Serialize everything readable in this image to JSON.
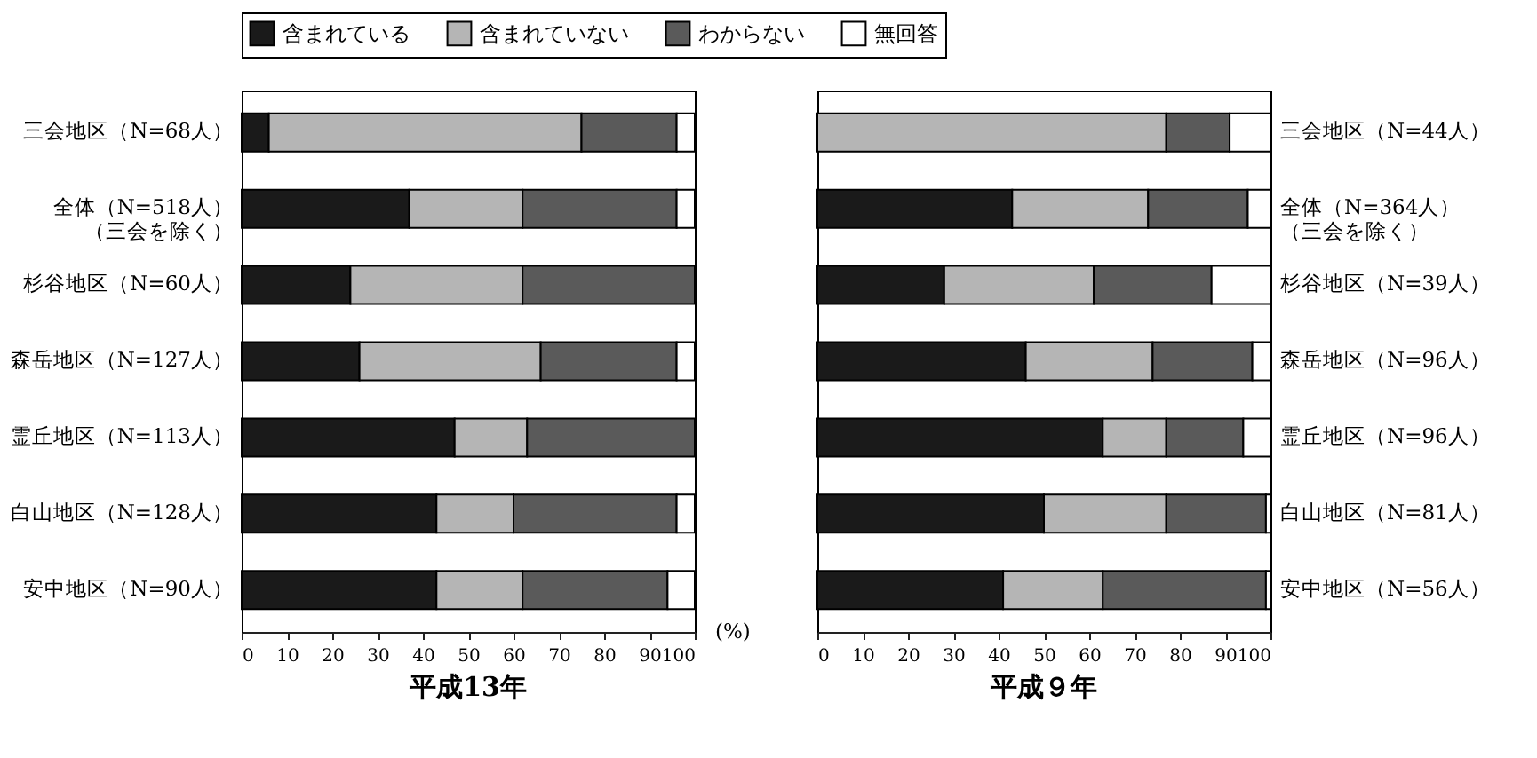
{
  "chart_data": [
    {
      "type": "bar",
      "orientation": "horizontal",
      "stacked": true,
      "title": "平成13年",
      "xlabel": "(%)",
      "legend": "top",
      "categories": [
        "三会地区（N=68人）",
        "全体（N=518人）（三会を除く）",
        "杉谷地区（N=60人）",
        "森岳地区（N=127人）",
        "霊丘地区（N=113人）",
        "白山地区（N=128人）",
        "安中地区（N=90人）"
      ],
      "xlim": [
        0,
        100
      ],
      "xticks": [
        0,
        10,
        20,
        30,
        40,
        50,
        60,
        70,
        80,
        90,
        100
      ],
      "series": [
        {
          "name": "含まれている",
          "color": "#1a1a1a",
          "values": [
            6,
            37,
            24,
            26,
            47,
            43,
            43
          ]
        },
        {
          "name": "含まれていない",
          "color": "#b5b5b5",
          "values": [
            69,
            25,
            38,
            40,
            16,
            17,
            19
          ]
        },
        {
          "name": "わからない",
          "color": "#5a5a5a",
          "values": [
            21,
            34,
            38,
            30,
            37,
            36,
            32
          ]
        },
        {
          "name": "無回答",
          "color": "#ffffff",
          "values": [
            4,
            4,
            0,
            4,
            0,
            4,
            6
          ]
        }
      ]
    },
    {
      "type": "bar",
      "orientation": "horizontal",
      "stacked": true,
      "title": "平成９年",
      "legend": "top",
      "categories": [
        "三会地区（N=44人）",
        "全体（N=364人）（三会を除く）",
        "杉谷地区（N=39人）",
        "森岳地区（N=96人）",
        "霊丘地区（N=96人）",
        "白山地区（N=81人）",
        "安中地区（N=56人）"
      ],
      "xlim": [
        0,
        100
      ],
      "xticks": [
        0,
        10,
        20,
        30,
        40,
        50,
        60,
        70,
        80,
        90,
        100
      ],
      "series": [
        {
          "name": "含まれている",
          "color": "#1a1a1a",
          "values": [
            0,
            43,
            28,
            46,
            63,
            50,
            41
          ]
        },
        {
          "name": "含まれていない",
          "color": "#b5b5b5",
          "values": [
            77,
            30,
            33,
            28,
            14,
            27,
            22
          ]
        },
        {
          "name": "わからない",
          "color": "#5a5a5a",
          "values": [
            14,
            22,
            26,
            22,
            17,
            22,
            36
          ]
        },
        {
          "name": "無回答",
          "color": "#ffffff",
          "values": [
            9,
            5,
            13,
            4,
            6,
            1,
            1
          ]
        }
      ]
    }
  ]
}
